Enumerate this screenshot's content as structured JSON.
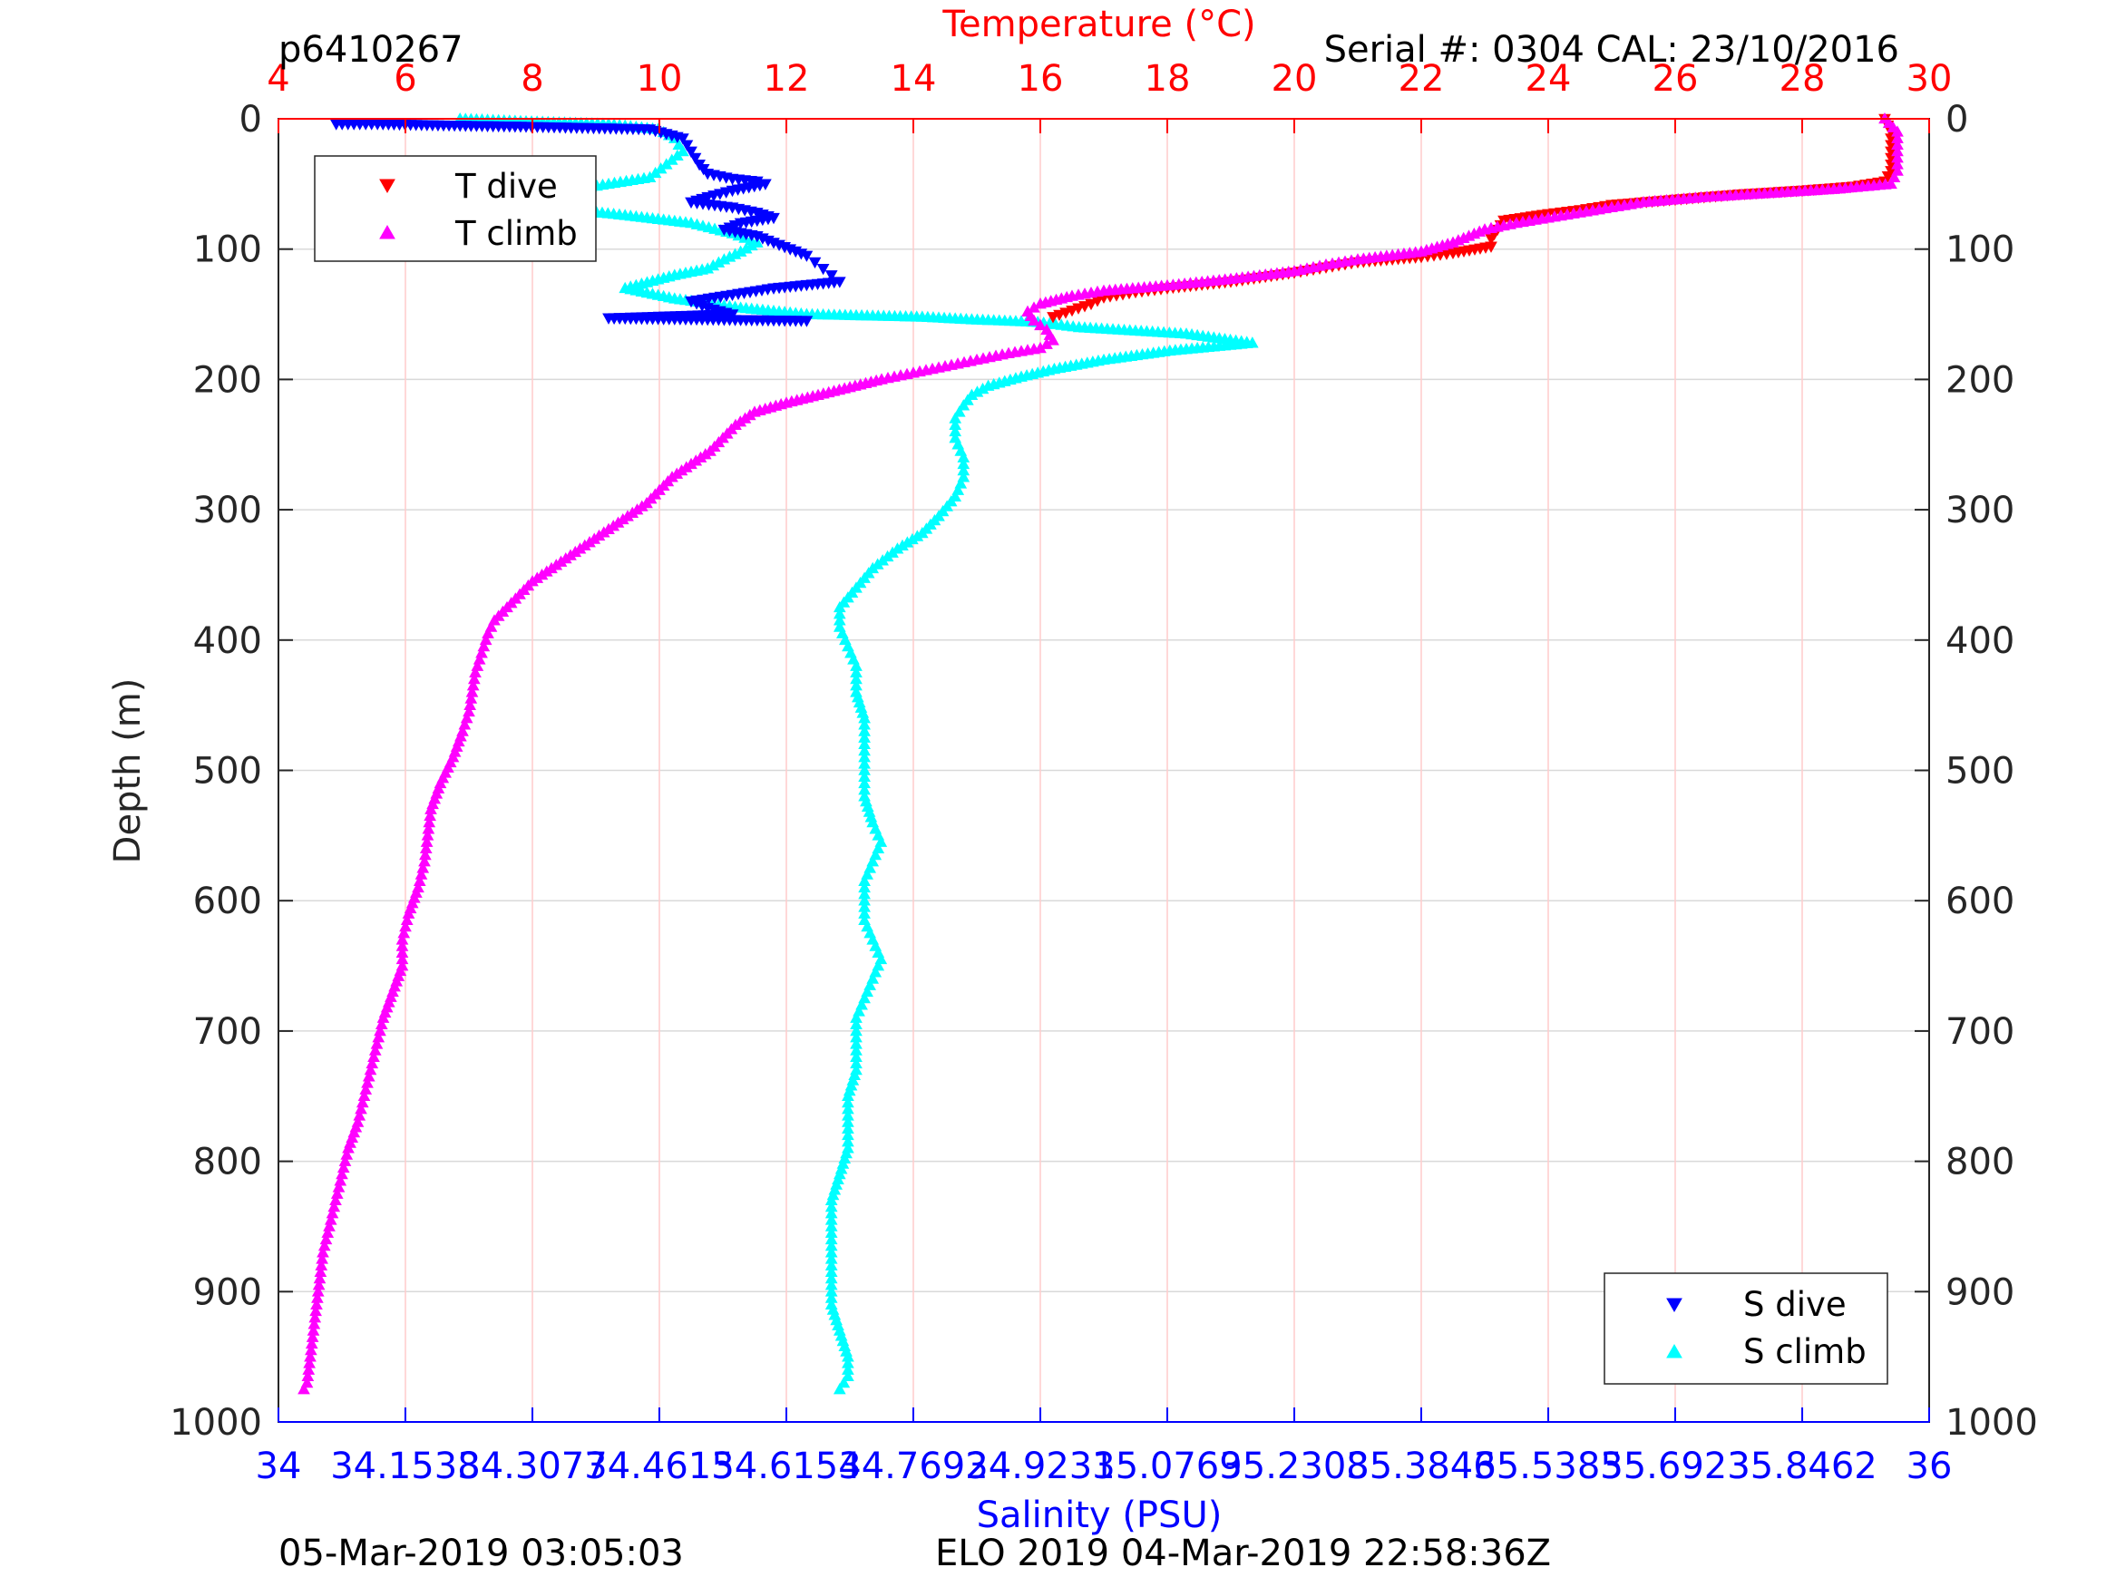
{
  "header": {
    "profile_id": "p6410267",
    "serial_cal": "Serial #: 0304  CAL: 23/10/2016"
  },
  "footer": {
    "left_timestamp": "05-Mar-2019 03:05:03",
    "center_text": "ELO 2019 04-Mar-2019 22:58:36Z"
  },
  "colors": {
    "temperature_axis": "#ff0000",
    "salinity_axis": "#0000ff",
    "t_dive": "#ff0000",
    "t_climb": "#ff00ff",
    "s_dive": "#0000ff",
    "s_climb": "#00ffff",
    "grid_depth": "#d9d9d9",
    "grid_temp": "#ffcccc"
  },
  "chart_data": {
    "type": "scatter",
    "top_axis": {
      "label": "Temperature (°C)",
      "range": [
        4,
        30
      ],
      "ticks": [
        "4",
        "6",
        "8",
        "10",
        "12",
        "14",
        "16",
        "18",
        "20",
        "22",
        "24",
        "26",
        "28",
        "30"
      ]
    },
    "bottom_axis": {
      "label": "Salinity (PSU)",
      "range": [
        34,
        36
      ],
      "ticks": [
        "34",
        "34.1538",
        "34.3077",
        "34.4615",
        "34.6154",
        "34.7692",
        "34.9231",
        "35.0769",
        "35.2308",
        "35.3846",
        "35.5385",
        "35.6923",
        "35.8462",
        "36"
      ]
    },
    "y_axis": {
      "label": "Depth (m)",
      "range": [
        0,
        1000
      ],
      "reversed": true,
      "ticks": [
        "0",
        "100",
        "200",
        "300",
        "400",
        "500",
        "600",
        "700",
        "800",
        "900",
        "1000"
      ]
    },
    "grid": true,
    "legend_temperature": {
      "placement": "top-left",
      "entries": [
        "T dive",
        "T climb"
      ]
    },
    "legend_salinity": {
      "placement": "bottom-right",
      "entries": [
        "S dive",
        "S climb"
      ]
    },
    "series": [
      {
        "name": "T dive",
        "axis": "temperature",
        "marker": "triangle-down",
        "points": [
          [
            29.3,
            0
          ],
          [
            29.4,
            10
          ],
          [
            29.4,
            25
          ],
          [
            29.4,
            40
          ],
          [
            29.3,
            48
          ],
          [
            28.8,
            52
          ],
          [
            28,
            55
          ],
          [
            27,
            58
          ],
          [
            26,
            62
          ],
          [
            25,
            66
          ],
          [
            24.5,
            70
          ],
          [
            24,
            73
          ],
          [
            23.3,
            78
          ],
          [
            23.2,
            85
          ],
          [
            23.1,
            92
          ],
          [
            23.1,
            98
          ],
          [
            22.5,
            103
          ],
          [
            22,
            106
          ],
          [
            21,
            110
          ],
          [
            20.5,
            114
          ],
          [
            20,
            118
          ],
          [
            19,
            125
          ],
          [
            18,
            130
          ],
          [
            17.5,
            133
          ],
          [
            17,
            137
          ],
          [
            16.8,
            142
          ],
          [
            16.5,
            147
          ],
          [
            16.2,
            152
          ]
        ]
      },
      {
        "name": "T climb",
        "axis": "temperature",
        "marker": "triangle-up",
        "points": [
          [
            29.3,
            0
          ],
          [
            29.5,
            10
          ],
          [
            29.5,
            25
          ],
          [
            29.5,
            40
          ],
          [
            29.4,
            50
          ],
          [
            28.5,
            54
          ],
          [
            27.5,
            57
          ],
          [
            26.5,
            60
          ],
          [
            25.5,
            64
          ],
          [
            25,
            68
          ],
          [
            24.5,
            72
          ],
          [
            24,
            76
          ],
          [
            23.5,
            80
          ],
          [
            23,
            85
          ],
          [
            22.5,
            95
          ],
          [
            22,
            102
          ],
          [
            21,
            108
          ],
          [
            20.5,
            112
          ],
          [
            20,
            117
          ],
          [
            19,
            123
          ],
          [
            18,
            128
          ],
          [
            17,
            132
          ],
          [
            16.5,
            136
          ],
          [
            16,
            142
          ],
          [
            15.8,
            148
          ],
          [
            15.9,
            155
          ],
          [
            16.1,
            162
          ],
          [
            16.2,
            170
          ],
          [
            16,
            176
          ],
          [
            15.5,
            180
          ],
          [
            15,
            185
          ],
          [
            14.5,
            190
          ],
          [
            14,
            195
          ],
          [
            13.5,
            200
          ],
          [
            13,
            206
          ],
          [
            12.5,
            212
          ],
          [
            12,
            218
          ],
          [
            11.5,
            225
          ],
          [
            11.2,
            235
          ],
          [
            11,
            245
          ],
          [
            10.8,
            255
          ],
          [
            10.5,
            265
          ],
          [
            10.2,
            275
          ],
          [
            10,
            285
          ],
          [
            9.8,
            295
          ],
          [
            9.5,
            305
          ],
          [
            9.2,
            315
          ],
          [
            8.9,
            325
          ],
          [
            8.6,
            335
          ],
          [
            8.3,
            345
          ],
          [
            8.0,
            355
          ],
          [
            7.8,
            365
          ],
          [
            7.6,
            375
          ],
          [
            7.4,
            385
          ],
          [
            7.3,
            395
          ],
          [
            7.2,
            410
          ],
          [
            7.1,
            425
          ],
          [
            7.05,
            440
          ],
          [
            7.0,
            455
          ],
          [
            6.9,
            470
          ],
          [
            6.75,
            490
          ],
          [
            6.55,
            510
          ],
          [
            6.4,
            530
          ],
          [
            6.35,
            550
          ],
          [
            6.3,
            570
          ],
          [
            6.2,
            590
          ],
          [
            6.05,
            610
          ],
          [
            5.95,
            630
          ],
          [
            5.95,
            650
          ],
          [
            5.8,
            670
          ],
          [
            5.65,
            690
          ],
          [
            5.55,
            710
          ],
          [
            5.45,
            730
          ],
          [
            5.35,
            750
          ],
          [
            5.25,
            770
          ],
          [
            5.1,
            790
          ],
          [
            5.0,
            810
          ],
          [
            4.9,
            830
          ],
          [
            4.8,
            850
          ],
          [
            4.7,
            870
          ],
          [
            4.65,
            890
          ],
          [
            4.6,
            910
          ],
          [
            4.55,
            930
          ],
          [
            4.5,
            950
          ],
          [
            4.45,
            970
          ],
          [
            4.4,
            975
          ]
        ]
      },
      {
        "name": "S dive",
        "axis": "salinity",
        "marker": "triangle-down",
        "points": [
          [
            34.07,
            4
          ],
          [
            34.12,
            4
          ],
          [
            34.2,
            5
          ],
          [
            34.3,
            6
          ],
          [
            34.45,
            8
          ],
          [
            34.49,
            15
          ],
          [
            34.5,
            25
          ],
          [
            34.51,
            35
          ],
          [
            34.52,
            42
          ],
          [
            34.55,
            46
          ],
          [
            34.58,
            48
          ],
          [
            34.59,
            50
          ],
          [
            34.55,
            55
          ],
          [
            34.52,
            60
          ],
          [
            34.5,
            64
          ],
          [
            34.55,
            68
          ],
          [
            34.58,
            72
          ],
          [
            34.6,
            76
          ],
          [
            34.56,
            80
          ],
          [
            34.54,
            85
          ],
          [
            34.58,
            90
          ],
          [
            34.6,
            95
          ],
          [
            34.62,
            100
          ],
          [
            34.64,
            105
          ],
          [
            34.65,
            110
          ],
          [
            34.66,
            115
          ],
          [
            34.67,
            120
          ],
          [
            34.68,
            125
          ],
          [
            34.6,
            130
          ],
          [
            34.55,
            135
          ],
          [
            34.5,
            140
          ],
          [
            34.52,
            145
          ],
          [
            34.55,
            150
          ],
          [
            34.4,
            153
          ],
          [
            34.64,
            155
          ]
        ]
      },
      {
        "name": "S climb",
        "axis": "salinity",
        "marker": "triangle-up",
        "points": [
          [
            34.22,
            0
          ],
          [
            34.3,
            2
          ],
          [
            34.4,
            4
          ],
          [
            34.46,
            8
          ],
          [
            34.48,
            15
          ],
          [
            34.49,
            25
          ],
          [
            34.47,
            35
          ],
          [
            34.45,
            45
          ],
          [
            34.4,
            50
          ],
          [
            34.35,
            55
          ],
          [
            34.3,
            60
          ],
          [
            34.33,
            68
          ],
          [
            34.42,
            74
          ],
          [
            34.5,
            80
          ],
          [
            34.55,
            88
          ],
          [
            34.58,
            95
          ],
          [
            34.56,
            102
          ],
          [
            34.54,
            108
          ],
          [
            34.52,
            115
          ],
          [
            34.48,
            120
          ],
          [
            34.42,
            130
          ],
          [
            34.48,
            138
          ],
          [
            34.56,
            145
          ],
          [
            34.64,
            150
          ],
          [
            34.78,
            152
          ],
          [
            34.84,
            154
          ],
          [
            34.92,
            156
          ],
          [
            34.97,
            160
          ],
          [
            35.1,
            165
          ],
          [
            35.18,
            172
          ],
          [
            35.08,
            178
          ],
          [
            35.0,
            185
          ],
          [
            34.94,
            192
          ],
          [
            34.9,
            198
          ],
          [
            34.86,
            205
          ],
          [
            34.84,
            212
          ],
          [
            34.83,
            220
          ],
          [
            34.82,
            230
          ],
          [
            34.82,
            245
          ],
          [
            34.83,
            260
          ],
          [
            34.83,
            275
          ],
          [
            34.82,
            290
          ],
          [
            34.8,
            305
          ],
          [
            34.78,
            318
          ],
          [
            34.75,
            330
          ],
          [
            34.72,
            345
          ],
          [
            34.7,
            360
          ],
          [
            34.68,
            375
          ],
          [
            34.68,
            390
          ],
          [
            34.69,
            405
          ],
          [
            34.7,
            420
          ],
          [
            34.7,
            440
          ],
          [
            34.71,
            460
          ],
          [
            34.71,
            480
          ],
          [
            34.71,
            500
          ],
          [
            34.71,
            520
          ],
          [
            34.72,
            540
          ],
          [
            34.73,
            555
          ],
          [
            34.72,
            570
          ],
          [
            34.71,
            585
          ],
          [
            34.71,
            600
          ],
          [
            34.71,
            615
          ],
          [
            34.72,
            630
          ],
          [
            34.73,
            645
          ],
          [
            34.72,
            660
          ],
          [
            34.71,
            675
          ],
          [
            34.7,
            690
          ],
          [
            34.7,
            710
          ],
          [
            34.7,
            730
          ],
          [
            34.69,
            750
          ],
          [
            34.69,
            770
          ],
          [
            34.69,
            790
          ],
          [
            34.68,
            810
          ],
          [
            34.67,
            830
          ],
          [
            34.67,
            850
          ],
          [
            34.67,
            870
          ],
          [
            34.67,
            890
          ],
          [
            34.67,
            910
          ],
          [
            34.68,
            930
          ],
          [
            34.69,
            950
          ],
          [
            34.69,
            965
          ],
          [
            34.68,
            975
          ]
        ]
      }
    ]
  }
}
